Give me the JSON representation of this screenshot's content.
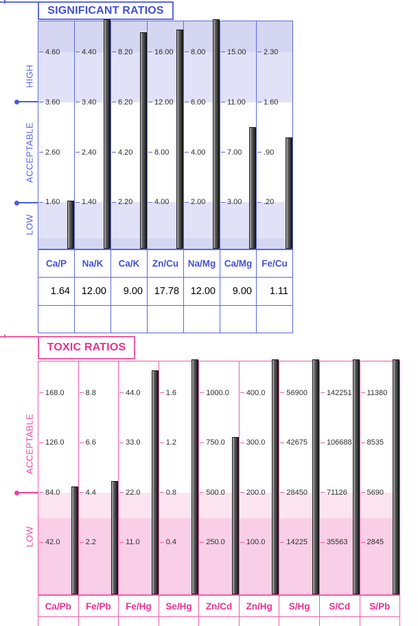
{
  "significant_ratios": {
    "title": "SIGNIFICANT RATIOS",
    "zones": [
      {
        "label": "HIGH"
      },
      {
        "label": "ACCEPTABLE"
      },
      {
        "label": "LOW"
      }
    ],
    "colors": {
      "accent": "#4350d4",
      "line": "#5b69e0",
      "band_dark": "#d5d6f2",
      "band_light": "#e1e2f8",
      "bar_dark": "#3a3a3a"
    },
    "columns": [
      {
        "label": "Ca/P",
        "ticks": [
          "4.60",
          "3.60",
          "2.60",
          "1.60"
        ],
        "value": "1.64",
        "bar": 1.64
      },
      {
        "label": "Na/K",
        "ticks": [
          "4.40",
          "3.40",
          "2.40",
          "1.40"
        ],
        "value": "12.00",
        "bar": 12.0
      },
      {
        "label": "Ca/K",
        "ticks": [
          "8.20",
          "6.20",
          "4.20",
          "2.20"
        ],
        "value": "9.00",
        "bar": 9.0
      },
      {
        "label": "Zn/Cu",
        "ticks": [
          "16.00",
          "12.00",
          "8.00",
          "4.00"
        ],
        "value": "17.78",
        "bar": 17.78
      },
      {
        "label": "Na/Mg",
        "ticks": [
          "8.00",
          "6.00",
          "4.00",
          "2.00"
        ],
        "value": "12.00",
        "bar": 12.0
      },
      {
        "label": "Ca/Mg",
        "ticks": [
          "15.00",
          "11.00",
          "7.00",
          "3.00"
        ],
        "value": "9.00",
        "bar": 9.0
      },
      {
        "label": "Fe/Cu",
        "ticks": [
          "2.30",
          "1.60",
          ".90",
          ".20"
        ],
        "value": "1.11",
        "bar": 1.11
      }
    ]
  },
  "toxic_ratios": {
    "title": "TOXIC RATIOS",
    "zones": [
      {
        "label": "ACCEPTABLE"
      },
      {
        "label": "LOW"
      }
    ],
    "colors": {
      "accent": "#ee2f92",
      "line": "#f25ca6",
      "band_light": "#fce5f1",
      "band_deep": "#f9cfe7",
      "bar_dark": "#3a3a3a"
    },
    "columns": [
      {
        "label": "Ca/Pb",
        "ticks": [
          "168.0",
          "126.0",
          "84.0",
          "42.0"
        ],
        "bar": 89
      },
      {
        "label": "Fe/Pb",
        "ticks": [
          "8.8",
          "6.6",
          "4.4",
          "2.2"
        ],
        "bar": 4.9
      },
      {
        "label": "Fe/Hg",
        "ticks": [
          "44.0",
          "33.0",
          "22.0",
          "11.0"
        ],
        "bar": 49
      },
      {
        "label": "Se/Hg",
        "ticks": [
          "1.6",
          "1.2",
          "0.8",
          "0.4"
        ],
        "bar": 2.5
      },
      {
        "label": "Zn/Cd",
        "ticks": [
          "1000.0",
          "750.0",
          "500.0",
          "250.0"
        ],
        "bar": 780
      },
      {
        "label": "Zn/Hg",
        "ticks": [
          "400.0",
          "300.0",
          "200.0",
          "100.0"
        ],
        "bar": 550
      },
      {
        "label": "S/Hg",
        "ticks": [
          "56900",
          "42675",
          "28450",
          "14225"
        ],
        "bar": 70000
      },
      {
        "label": "S/Cd",
        "ticks": [
          "142251",
          "106688",
          "71126",
          "35563"
        ],
        "bar": 175000
      },
      {
        "label": "S/Pb",
        "ticks": [
          "11380",
          "8535",
          "5690",
          "2845"
        ],
        "bar": 14000
      }
    ]
  },
  "chart_data": [
    {
      "type": "bar",
      "title": "SIGNIFICANT RATIOS",
      "categories": [
        "Ca/P",
        "Na/K",
        "Ca/K",
        "Zn/Cu",
        "Na/Mg",
        "Ca/Mg",
        "Fe/Cu"
      ],
      "values": [
        1.64,
        12.0,
        9.0,
        17.78,
        12.0,
        9.0,
        1.11
      ],
      "value_labels": [
        "1.64",
        "12.00",
        "9.00",
        "17.78",
        "12.00",
        "9.00",
        "1.11"
      ],
      "per_column_tick_labels": [
        [
          "4.60",
          "3.60",
          "2.60",
          "1.60"
        ],
        [
          "4.40",
          "3.40",
          "2.40",
          "1.40"
        ],
        [
          "8.20",
          "6.20",
          "4.20",
          "2.20"
        ],
        [
          "16.00",
          "12.00",
          "8.00",
          "4.00"
        ],
        [
          "8.00",
          "6.00",
          "4.00",
          "2.00"
        ],
        [
          "15.00",
          "11.00",
          "7.00",
          "3.00"
        ],
        [
          "2.30",
          "1.60",
          ".90",
          ".20"
        ]
      ],
      "zone_bands": [
        "HIGH",
        "ACCEPTABLE",
        "LOW"
      ],
      "bars_clipped_at_top": [
        "Na/K",
        "Na/Mg"
      ],
      "legend_position": "none",
      "grid": "per-column tick dashes only"
    },
    {
      "type": "bar",
      "title": "TOXIC RATIOS",
      "categories": [
        "Ca/Pb",
        "Fe/Pb",
        "Fe/Hg",
        "Se/Hg",
        "Zn/Cd",
        "Zn/Hg",
        "S/Hg",
        "S/Cd",
        "S/Pb"
      ],
      "values_estimated_from_bars": [
        89,
        4.9,
        49,
        2.5,
        780,
        550,
        70000,
        175000,
        14000
      ],
      "per_column_tick_labels": [
        [
          "168.0",
          "126.0",
          "84.0",
          "42.0"
        ],
        [
          "8.8",
          "6.6",
          "4.4",
          "2.2"
        ],
        [
          "44.0",
          "33.0",
          "22.0",
          "11.0"
        ],
        [
          "1.6",
          "1.2",
          "0.8",
          "0.4"
        ],
        [
          "1000.0",
          "750.0",
          "500.0",
          "250.0"
        ],
        [
          "400.0",
          "300.0",
          "200.0",
          "100.0"
        ],
        [
          "56900",
          "42675",
          "28450",
          "14225"
        ],
        [
          "142251",
          "106688",
          "71126",
          "35563"
        ],
        [
          "11380",
          "8535",
          "5690",
          "2845"
        ]
      ],
      "zone_bands": [
        "ACCEPTABLE",
        "LOW"
      ],
      "bars_clipped_at_top": [
        "Se/Hg",
        "Zn/Hg",
        "S/Hg",
        "S/Cd",
        "S/Pb"
      ],
      "legend_position": "none",
      "grid": "per-column tick dashes only"
    }
  ]
}
